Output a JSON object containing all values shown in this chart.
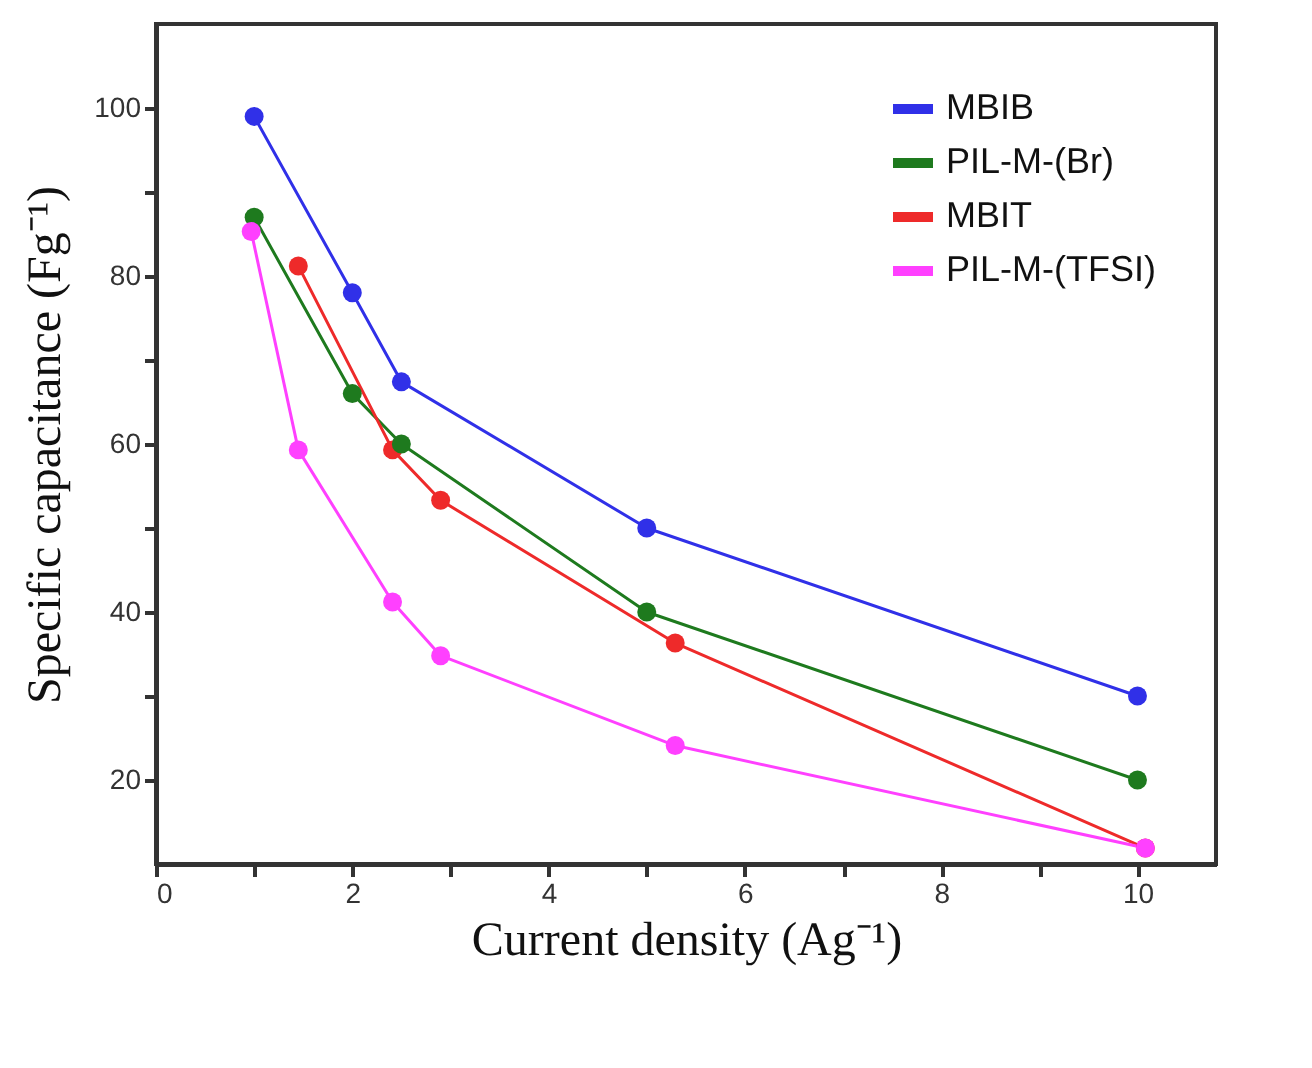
{
  "chart_data": {
    "type": "line",
    "xlabel": "Current density (Ag⁻¹)",
    "ylabel": "Specific capacitance (Fg⁻¹)",
    "xlim": [
      0,
      10.8
    ],
    "xticks": [
      0,
      {
        "value": 1,
        "label": null
      },
      2,
      {
        "value": 3,
        "label": null
      },
      4,
      {
        "value": 5,
        "label": null
      },
      6,
      {
        "value": 7,
        "label": null
      },
      8,
      {
        "value": 9,
        "label": null
      },
      10
    ],
    "ylim": [
      10,
      110
    ],
    "yticks": [
      20,
      {
        "value": 30,
        "label": null
      },
      40,
      {
        "value": 50,
        "label": null
      },
      60,
      {
        "value": 70,
        "label": null
      },
      80,
      {
        "value": 90,
        "label": null
      },
      100
    ],
    "grid": false,
    "legend": "top right",
    "marker": "circle",
    "line_style": "solid",
    "series": [
      {
        "name": "MBIB",
        "color": "#3030e8",
        "x": [
          1,
          2,
          2.5,
          5,
          10
        ],
        "values": [
          99,
          78,
          67.4,
          50,
          30
        ]
      },
      {
        "name": "PIL-M-(Br)",
        "color": "#1e7a1e",
        "x": [
          1,
          2,
          2.5,
          5,
          10
        ],
        "values": [
          87,
          66,
          60,
          40,
          20
        ]
      },
      {
        "name": "MBIT",
        "color": "#ee2a2a",
        "x": [
          1.45,
          2.41,
          2.9,
          5.29,
          10.08
        ],
        "values": [
          81.2,
          59.3,
          53.3,
          36.3,
          11.9
        ]
      },
      {
        "name": "PIL-M-(TFSI)",
        "color": "#ff40ff",
        "x": [
          0.97,
          1.45,
          2.41,
          2.9,
          5.29,
          10.08
        ],
        "values": [
          85.3,
          59.3,
          41.2,
          34.8,
          24.1,
          11.9
        ]
      }
    ]
  }
}
